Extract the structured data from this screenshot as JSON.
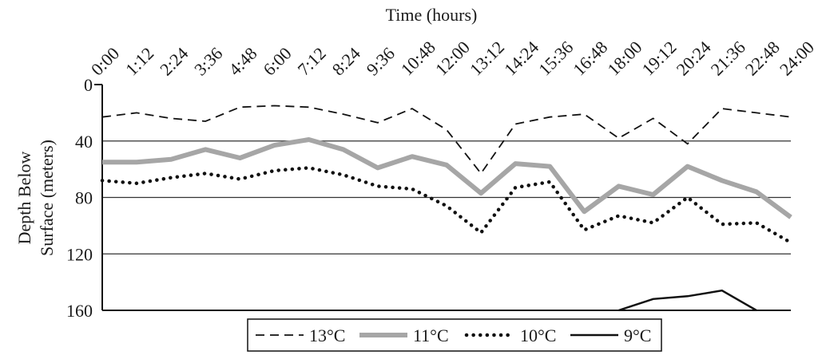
{
  "chart_data": {
    "type": "line",
    "title": "Time (hours)",
    "ylabel_lines": [
      "Depth Below",
      "Surface (meters)"
    ],
    "x_categories": [
      "0:00",
      "1:12",
      "2:24",
      "3:36",
      "4:48",
      "6:00",
      "7:12",
      "8:24",
      "9:36",
      "10:48",
      "12:00",
      "13:12",
      "14:24",
      "15:36",
      "16:48",
      "18:00",
      "19:12",
      "20:24",
      "21:36",
      "22:48",
      "24:00"
    ],
    "x_axis_position": "top",
    "x_hours_range": [
      0,
      24
    ],
    "ylim": [
      0,
      160
    ],
    "y_inverted": true,
    "y_ticks": [
      0,
      40,
      80,
      120,
      160
    ],
    "grid": "horizontal",
    "legend_position": "bottom",
    "series": [
      {
        "name": "13°C",
        "style": "dashed",
        "color": "#111111",
        "x": [
          0,
          1.2,
          2.4,
          3.6,
          4.8,
          6.0,
          7.2,
          8.4,
          9.6,
          10.8,
          12.0,
          13.2,
          14.4,
          15.6,
          16.8,
          18.0,
          19.2,
          20.4,
          21.6,
          22.8,
          24.0
        ],
        "y": [
          23,
          20,
          24,
          26,
          16,
          15,
          16,
          21,
          27,
          17,
          32,
          63,
          28,
          23,
          21,
          38,
          24,
          42,
          17,
          20,
          23
        ]
      },
      {
        "name": "11°C",
        "style": "thick-solid",
        "color": "#a6a6a6",
        "x": [
          0,
          1.2,
          2.4,
          3.6,
          4.8,
          6.0,
          7.2,
          8.4,
          9.6,
          10.8,
          12.0,
          13.2,
          14.4,
          15.6,
          16.8,
          18.0,
          19.2,
          20.4,
          21.6,
          22.8,
          24.0
        ],
        "y": [
          55,
          55,
          53,
          46,
          52,
          43,
          39,
          46,
          59,
          51,
          57,
          77,
          56,
          58,
          90,
          72,
          78,
          58,
          68,
          76,
          94
        ]
      },
      {
        "name": "10°C",
        "style": "dotted",
        "color": "#111111",
        "x": [
          0,
          1.2,
          2.4,
          3.6,
          4.8,
          6.0,
          7.2,
          8.4,
          9.6,
          10.8,
          12.0,
          13.2,
          14.4,
          15.6,
          16.8,
          18.0,
          19.2,
          20.4,
          21.6,
          22.8,
          24.0
        ],
        "y": [
          68,
          70,
          66,
          63,
          67,
          61,
          59,
          64,
          72,
          74,
          86,
          105,
          73,
          69,
          103,
          93,
          98,
          80,
          99,
          98,
          112
        ]
      },
      {
        "name": "9°C",
        "style": "solid",
        "color": "#111111",
        "x": [
          18.0,
          19.2,
          20.4,
          21.6,
          22.8
        ],
        "y": [
          160,
          152,
          150,
          146,
          160
        ]
      }
    ]
  }
}
